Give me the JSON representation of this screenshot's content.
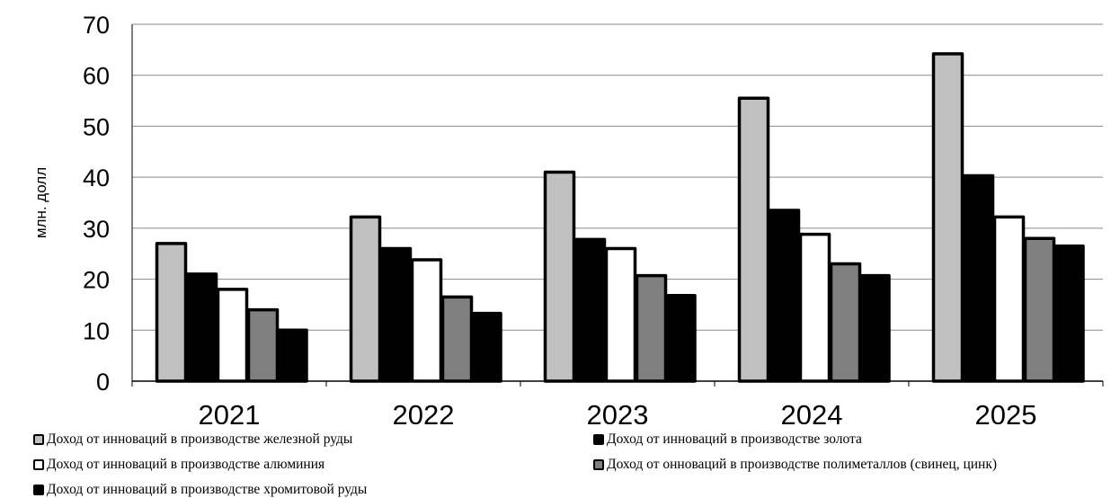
{
  "chart_data": {
    "type": "bar",
    "title": "",
    "xlabel": "",
    "ylabel": "млн. долл",
    "ylim": [
      0,
      70
    ],
    "yticks": [
      0,
      10,
      20,
      30,
      40,
      50,
      60,
      70
    ],
    "grid": true,
    "legend_position": "bottom",
    "categories": [
      "2021",
      "2022",
      "2023",
      "2024",
      "2025"
    ],
    "series": [
      {
        "name": "Доход от инноваций в производстве  железной руды",
        "color": "#c0c0c0",
        "values": [
          27,
          32.2,
          41,
          55.5,
          64.2
        ]
      },
      {
        "name": "Доход от инноваций в производстве золота",
        "color": "#000000",
        "values": [
          21,
          26,
          27.8,
          33.5,
          40.3
        ]
      },
      {
        "name": "Доход от инноваций в производстве алюминия",
        "color": "#ffffff",
        "values": [
          18,
          23.8,
          26,
          28.8,
          32.2
        ]
      },
      {
        "name": "Доход от онноваций в производстве полиметаллов (свинец, цинк)",
        "color": "#808080",
        "values": [
          14,
          16.5,
          20.7,
          23,
          28
        ]
      },
      {
        "name": "Доход от инноваций в производстве хромитовой руды",
        "color": "#000000",
        "values": [
          10,
          13.3,
          16.8,
          20.7,
          26.5
        ]
      }
    ]
  }
}
